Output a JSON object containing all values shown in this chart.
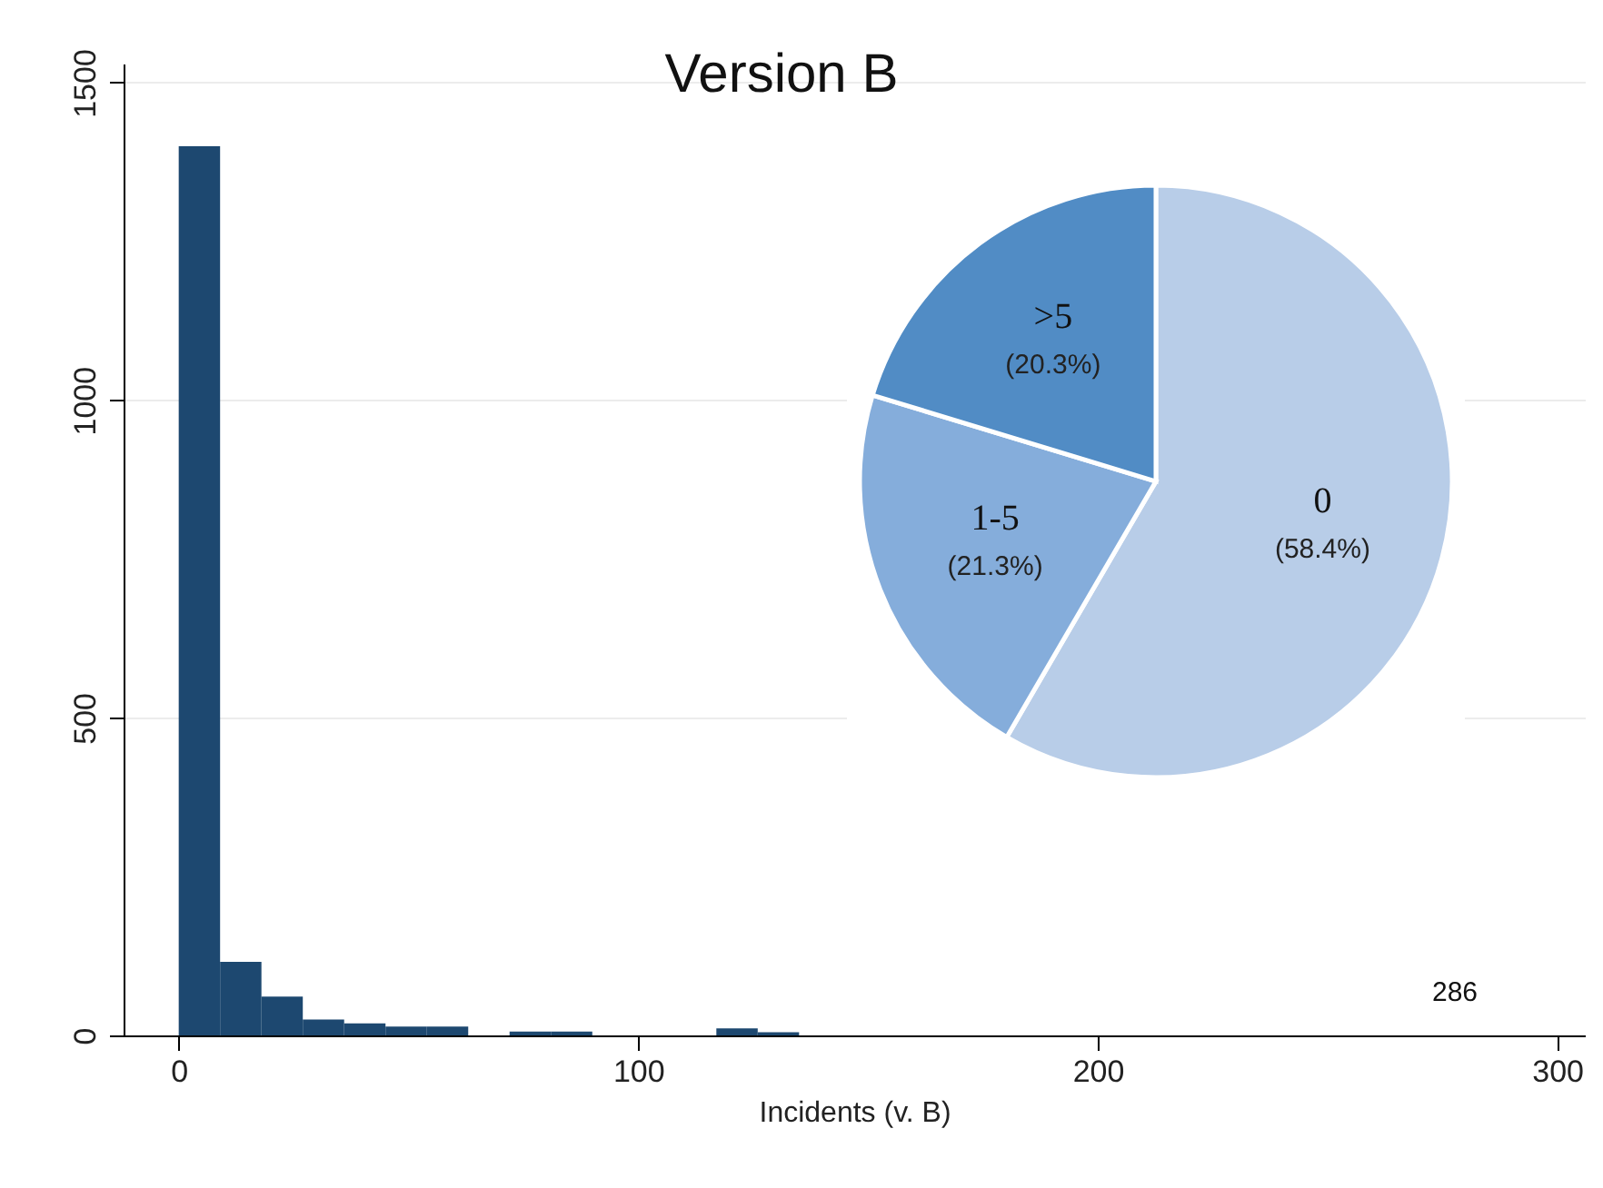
{
  "chart_data": [
    {
      "type": "histogram",
      "title": "Version B",
      "xlabel": "Incidents (v. B)",
      "bins": [
        0,
        9,
        18,
        27,
        36,
        45,
        54,
        63,
        72,
        81,
        90,
        99,
        108,
        117,
        126,
        135,
        144,
        153,
        162,
        171,
        180,
        189,
        198,
        207,
        216,
        225,
        234,
        243,
        252,
        261,
        270,
        279,
        288
      ],
      "values": [
        1400,
        116,
        61,
        25,
        19,
        14,
        14,
        0,
        6,
        6,
        0,
        0,
        0,
        11,
        5,
        0,
        0,
        0,
        0,
        0,
        0,
        0,
        0,
        0,
        0,
        0,
        0,
        0,
        0,
        0,
        0,
        0
      ],
      "color": "#1d4870",
      "xlim": [
        -12,
        306
      ],
      "xticks": [
        0,
        100,
        200,
        300
      ],
      "ylim": [
        0,
        1530
      ],
      "yticks": [
        0,
        500,
        1000,
        1500
      ],
      "grid": "y",
      "annotations": [
        "286"
      ]
    },
    {
      "type": "pie",
      "categories": [
        "0",
        "1-5",
        ">5"
      ],
      "values": [
        58.4,
        21.3,
        20.3
      ],
      "colors": [
        "#b8cde8",
        "#85addb",
        "#518cc5"
      ],
      "value_labels": [
        "(58.4%)",
        "(21.3%)",
        "(20.3%)"
      ]
    }
  ]
}
